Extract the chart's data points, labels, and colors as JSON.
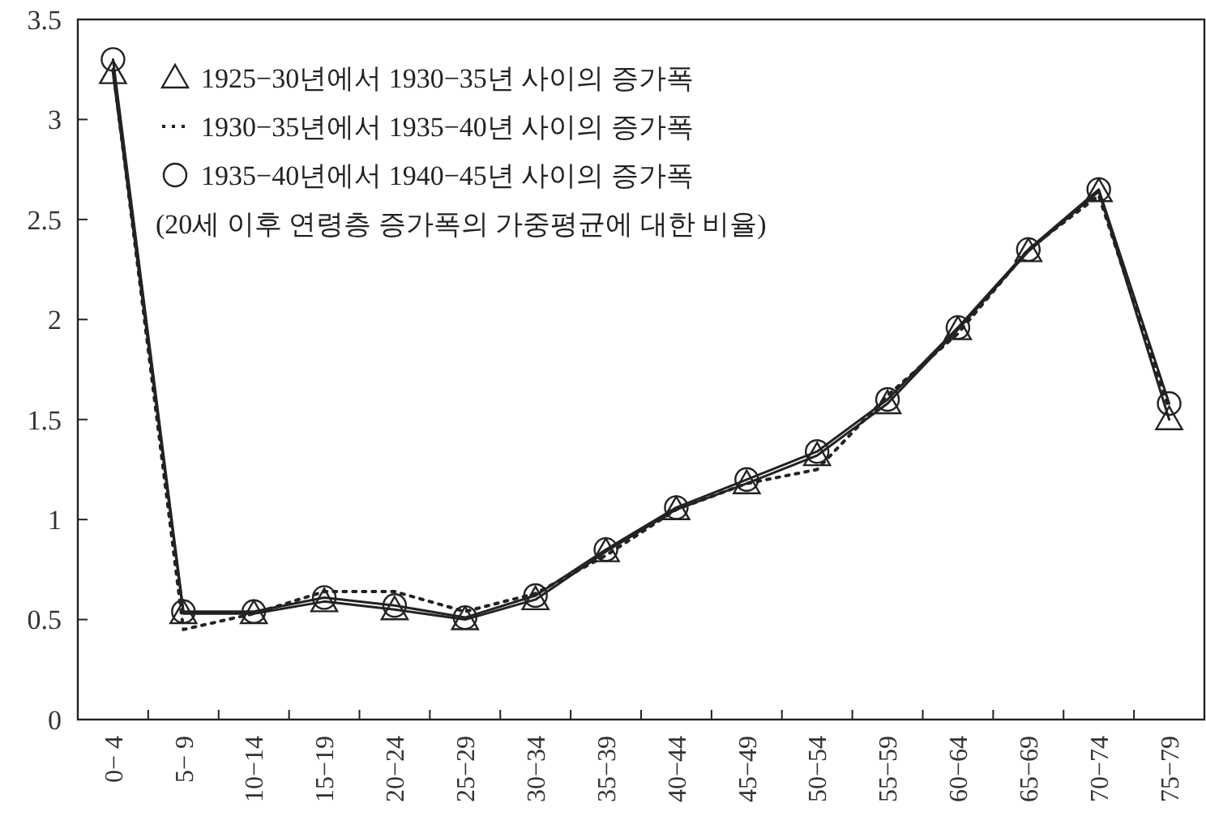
{
  "chart_data": {
    "type": "line",
    "categories": [
      "0− 4",
      "5− 9",
      "10−14",
      "15−19",
      "20−24",
      "25−29",
      "30−34",
      "35−39",
      "40−44",
      "45−49",
      "50−54",
      "55−59",
      "60−64",
      "65−69",
      "70−74",
      "75−79"
    ],
    "series": [
      {
        "name": "1925−30년에서 1930−35년 사이의 증가폭",
        "color": "#222222",
        "marker": "triangle",
        "line_style": "solid",
        "values": [
          3.23,
          0.53,
          0.53,
          0.59,
          0.55,
          0.5,
          0.6,
          0.84,
          1.05,
          1.18,
          1.32,
          1.58,
          1.95,
          2.34,
          2.64,
          1.5
        ]
      },
      {
        "name": "1930−35년에서 1935−40년 사이의 증가폭",
        "color": "#222222",
        "marker": "none",
        "line_style": "dotted",
        "values": [
          3.25,
          0.45,
          0.53,
          0.64,
          0.64,
          0.54,
          0.63,
          0.82,
          1.05,
          1.18,
          1.25,
          1.62,
          1.93,
          2.35,
          2.62,
          1.55
        ]
      },
      {
        "name": "1935−40년에서 1940−45년 사이의 증가폭",
        "color": "#222222",
        "marker": "circle",
        "line_style": "solid",
        "values": [
          3.3,
          0.54,
          0.54,
          0.61,
          0.57,
          0.51,
          0.62,
          0.85,
          1.06,
          1.2,
          1.34,
          1.6,
          1.96,
          2.35,
          2.65,
          1.58
        ]
      }
    ],
    "annotations": [
      "(20세 이후 연령층 증가폭의 가중평균에 대한 비율)"
    ],
    "ylim": [
      0,
      3.5
    ],
    "yticks": [
      0,
      0.5,
      1,
      1.5,
      2,
      2.5,
      3,
      3.5
    ],
    "grid": false,
    "legend": "top left"
  }
}
